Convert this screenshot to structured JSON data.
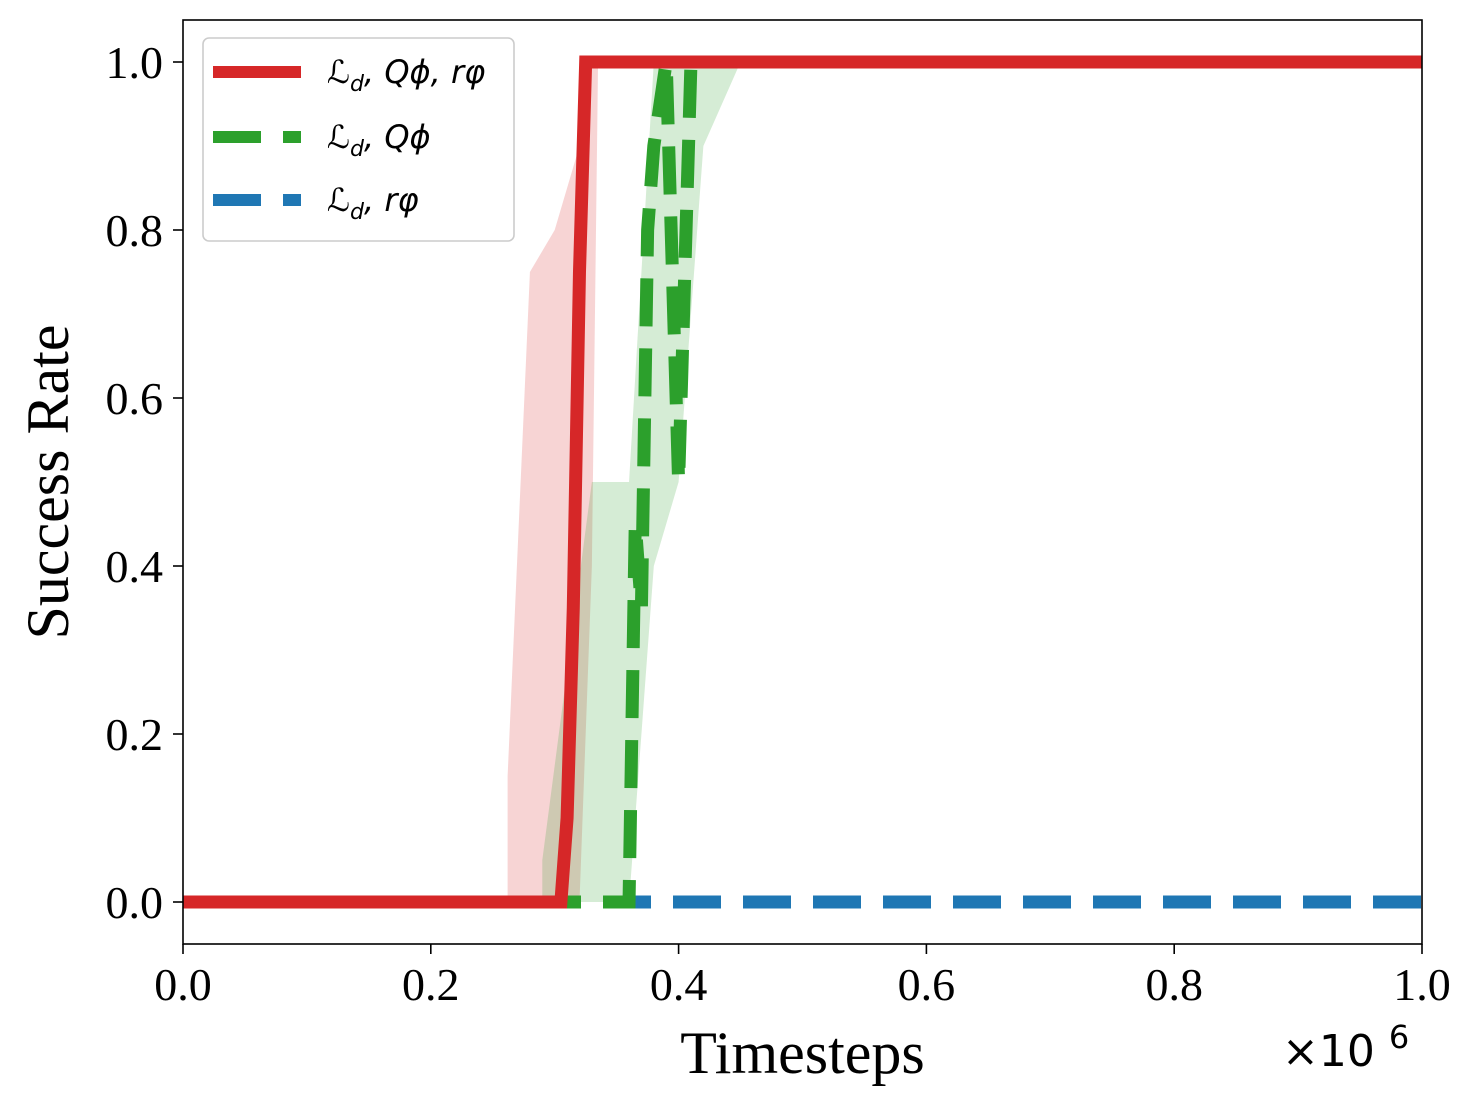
{
  "chart_data": {
    "type": "line",
    "title": "",
    "xlabel": "Timesteps",
    "ylabel": "Success Rate",
    "x_offset_label": "×10",
    "x_offset_exponent": "6",
    "xlim": [
      0.0,
      1.0
    ],
    "ylim": [
      -0.05,
      1.05
    ],
    "x_ticks": [
      "0.0",
      "0.2",
      "0.4",
      "0.6",
      "0.8",
      "1.0"
    ],
    "y_ticks": [
      "0.0",
      "0.2",
      "0.4",
      "0.6",
      "0.8",
      "1.0"
    ],
    "grid": false,
    "legend_position": "top-left",
    "series": [
      {
        "name": "ℒd, Qϕ, rφ",
        "legend_main": "ℒ",
        "legend_sub": "d",
        "legend_rest": ", Qϕ, rφ",
        "color": "#d62728",
        "style": "solid",
        "x": [
          0.0,
          0.305,
          0.31,
          0.315,
          0.32,
          0.325,
          0.33,
          1.0
        ],
        "y": [
          0.0,
          0.0,
          0.1,
          0.35,
          0.75,
          1.0,
          1.0,
          1.0
        ],
        "band": {
          "x": [
            0.262,
            0.28,
            0.3,
            0.31,
            0.32,
            0.33,
            0.335
          ],
          "lower": [
            0.0,
            0.0,
            0.0,
            0.0,
            0.0,
            0.4,
            1.0
          ],
          "upper": [
            0.15,
            0.75,
            0.8,
            0.85,
            0.9,
            1.0,
            1.0
          ]
        }
      },
      {
        "name": "ℒd, Qϕ",
        "legend_main": "ℒ",
        "legend_sub": "d",
        "legend_rest": ", Qϕ",
        "color": "#2ca02c",
        "style": "dashed",
        "x": [
          0.0,
          0.36,
          0.365,
          0.37,
          0.375,
          0.38,
          0.39,
          0.4,
          0.41,
          1.0
        ],
        "y": [
          0.0,
          0.0,
          0.45,
          0.35,
          0.8,
          0.9,
          1.0,
          0.5,
          1.0,
          1.0
        ],
        "band": {
          "x": [
            0.29,
            0.33,
            0.34,
            0.36,
            0.38,
            0.4,
            0.42,
            0.45,
            0.46
          ],
          "lower": [
            0.0,
            0.0,
            0.0,
            0.0,
            0.4,
            0.5,
            0.9,
            1.0,
            1.0
          ],
          "upper": [
            0.05,
            0.5,
            0.5,
            0.5,
            1.0,
            1.0,
            1.0,
            1.0,
            1.0
          ]
        }
      },
      {
        "name": "ℒd, rφ",
        "legend_main": "ℒ",
        "legend_sub": "d",
        "legend_rest": ", rφ",
        "color": "#1f77b4",
        "style": "dashed",
        "x": [
          0.0,
          1.0
        ],
        "y": [
          0.0,
          0.0
        ]
      }
    ]
  }
}
